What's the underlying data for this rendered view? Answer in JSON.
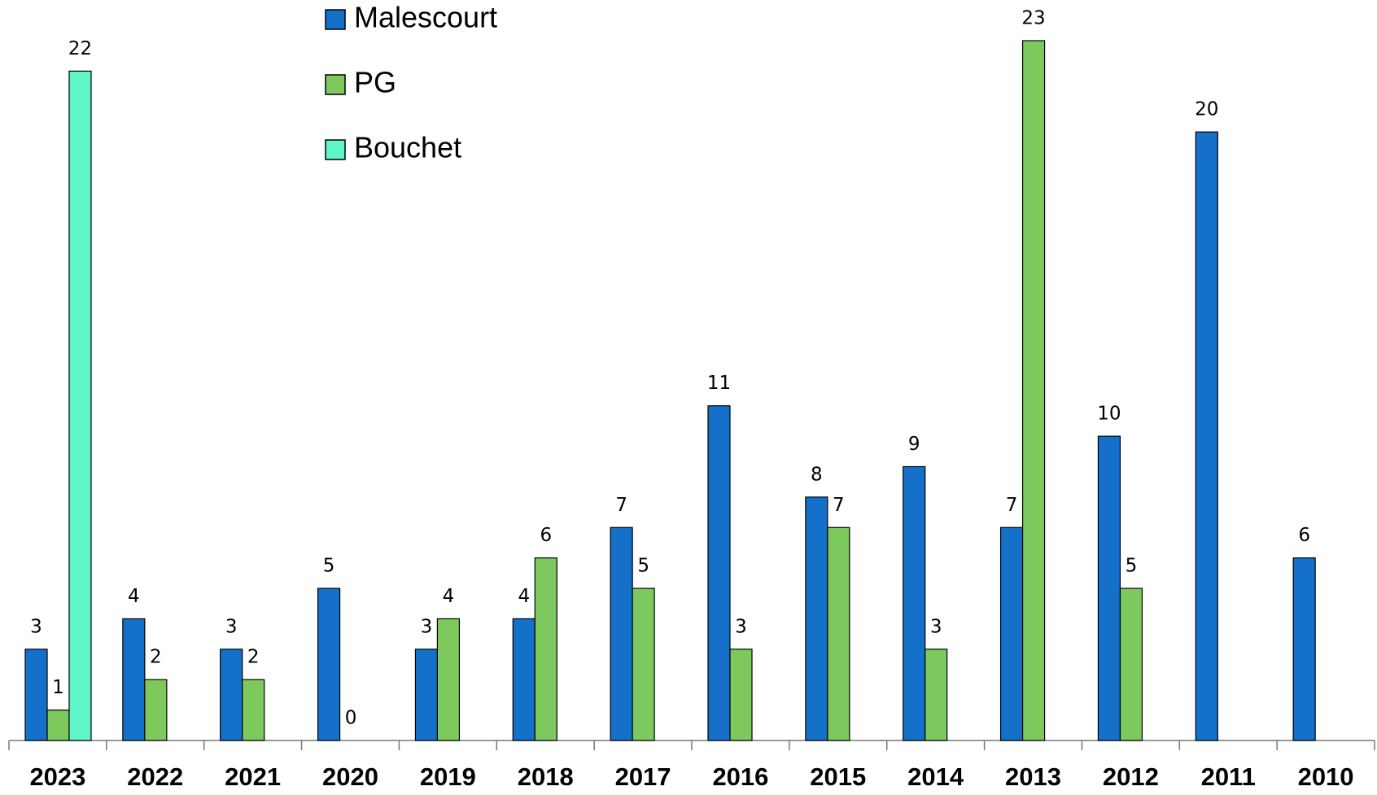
{
  "chart_data": {
    "type": "bar",
    "categories": [
      "2023",
      "2022",
      "2021",
      "2020",
      "2019",
      "2018",
      "2017",
      "2016",
      "2015",
      "2014",
      "2013",
      "2012",
      "2011",
      "2010"
    ],
    "series": [
      {
        "name": "Malescourt",
        "color": "#1570c9",
        "values": [
          3,
          4,
          3,
          5,
          3,
          4,
          7,
          11,
          8,
          9,
          7,
          10,
          20,
          6
        ]
      },
      {
        "name": "PG",
        "color": "#7dc95e",
        "values": [
          1,
          2,
          2,
          0,
          4,
          6,
          5,
          3,
          7,
          3,
          23,
          5,
          null,
          null
        ]
      },
      {
        "name": "Bouchet",
        "color": "#5ff5c8",
        "values": [
          22,
          null,
          null,
          null,
          null,
          null,
          null,
          null,
          null,
          null,
          null,
          null,
          null,
          null
        ]
      }
    ],
    "ylim": [
      0,
      23
    ],
    "legend": "top-center"
  }
}
